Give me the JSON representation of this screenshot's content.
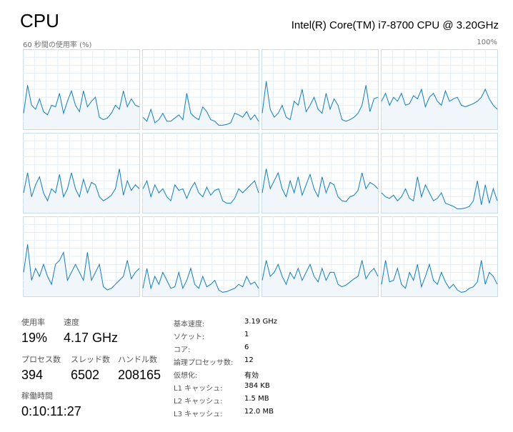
{
  "header": {
    "title": "CPU",
    "cpu_name": "Intel(R) Core(TM) i7-8700 CPU @ 3.20GHz",
    "graph_label": "60 秒間の使用率 (%)",
    "graph_max": "100%"
  },
  "chart_data": [
    {
      "type": "line",
      "ylim": [
        0,
        100
      ],
      "color": "#117dbb",
      "values": [
        20,
        55,
        30,
        25,
        38,
        22,
        18,
        30,
        28,
        45,
        20,
        35,
        48,
        30,
        22,
        48,
        28,
        35,
        40,
        15,
        12,
        14,
        20,
        30,
        25,
        48,
        28,
        38,
        30,
        28
      ]
    },
    {
      "type": "line",
      "ylim": [
        0,
        100
      ],
      "color": "#117dbb",
      "values": [
        15,
        10,
        25,
        8,
        12,
        20,
        10,
        10,
        14,
        18,
        12,
        45,
        20,
        15,
        12,
        28,
        22,
        12,
        10,
        5,
        5,
        6,
        8,
        20,
        18,
        15,
        22,
        12,
        18,
        10
      ]
    },
    {
      "type": "line",
      "ylim": [
        0,
        100
      ],
      "color": "#117dbb",
      "values": [
        20,
        60,
        25,
        15,
        20,
        30,
        15,
        12,
        35,
        30,
        50,
        22,
        30,
        40,
        25,
        20,
        45,
        25,
        38,
        30,
        12,
        10,
        12,
        15,
        20,
        30,
        55,
        22,
        38,
        40
      ]
    },
    {
      "type": "line",
      "ylim": [
        0,
        100
      ],
      "color": "#117dbb",
      "values": [
        35,
        45,
        30,
        40,
        35,
        45,
        30,
        32,
        42,
        38,
        50,
        28,
        40,
        45,
        35,
        30,
        48,
        35,
        38,
        40,
        30,
        28,
        30,
        32,
        35,
        40,
        50,
        38,
        30,
        25
      ]
    },
    {
      "type": "line",
      "ylim": [
        0,
        100
      ],
      "color": "#117dbb",
      "values": [
        25,
        50,
        20,
        35,
        45,
        25,
        15,
        30,
        25,
        48,
        20,
        30,
        50,
        30,
        20,
        42,
        25,
        38,
        35,
        20,
        15,
        18,
        22,
        30,
        55,
        22,
        40,
        28,
        35,
        30
      ]
    },
    {
      "type": "line",
      "ylim": [
        0,
        100
      ],
      "color": "#117dbb",
      "values": [
        30,
        40,
        20,
        35,
        25,
        30,
        20,
        15,
        35,
        28,
        30,
        18,
        30,
        38,
        25,
        20,
        32,
        22,
        28,
        30,
        15,
        12,
        12,
        18,
        30,
        25,
        30,
        35,
        40,
        25
      ]
    },
    {
      "type": "line",
      "ylim": [
        0,
        100
      ],
      "color": "#117dbb",
      "values": [
        25,
        55,
        30,
        40,
        50,
        30,
        20,
        40,
        25,
        45,
        22,
        35,
        48,
        30,
        20,
        45,
        25,
        38,
        35,
        20,
        15,
        14,
        20,
        22,
        28,
        50,
        30,
        38,
        35,
        30
      ]
    },
    {
      "type": "line",
      "ylim": [
        0,
        100
      ],
      "color": "#117dbb",
      "values": [
        25,
        20,
        18,
        22,
        15,
        20,
        30,
        18,
        15,
        45,
        20,
        35,
        25,
        15,
        18,
        25,
        12,
        10,
        8,
        5,
        5,
        6,
        8,
        15,
        40,
        10,
        35,
        12,
        30,
        15
      ]
    },
    {
      "type": "line",
      "ylim": [
        0,
        100
      ],
      "color": "#117dbb",
      "values": [
        30,
        65,
        20,
        35,
        25,
        40,
        25,
        15,
        40,
        45,
        55,
        20,
        30,
        40,
        30,
        20,
        55,
        20,
        30,
        40,
        12,
        8,
        10,
        15,
        20,
        25,
        45,
        22,
        30,
        35
      ]
    },
    {
      "type": "line",
      "ylim": [
        0,
        100
      ],
      "color": "#117dbb",
      "values": [
        10,
        35,
        10,
        25,
        15,
        30,
        20,
        10,
        12,
        30,
        10,
        20,
        35,
        15,
        10,
        25,
        12,
        15,
        20,
        8,
        5,
        6,
        8,
        10,
        15,
        12,
        25,
        15,
        18,
        10
      ]
    },
    {
      "type": "line",
      "ylim": [
        0,
        100
      ],
      "color": "#117dbb",
      "values": [
        20,
        45,
        25,
        30,
        40,
        25,
        15,
        30,
        22,
        35,
        20,
        30,
        40,
        25,
        18,
        35,
        20,
        30,
        30,
        15,
        12,
        14,
        18,
        22,
        25,
        45,
        22,
        30,
        35,
        25
      ]
    },
    {
      "type": "line",
      "ylim": [
        0,
        100
      ],
      "color": "#117dbb",
      "values": [
        15,
        45,
        18,
        20,
        35,
        15,
        10,
        30,
        20,
        40,
        12,
        25,
        40,
        20,
        15,
        30,
        18,
        10,
        15,
        8,
        5,
        6,
        10,
        12,
        18,
        45,
        15,
        30,
        25,
        15
      ]
    }
  ],
  "stats": [
    {
      "label": "使用率",
      "value": "19%"
    },
    {
      "label": "速度",
      "value": "4.17 GHz"
    },
    {
      "label": "プロセス数",
      "value": "394"
    },
    {
      "label": "スレッド数",
      "value": "6502"
    },
    {
      "label": "ハンドル数",
      "value": "208165"
    },
    {
      "label": "稼働時間",
      "value": "0:10:11:27"
    }
  ],
  "details": [
    {
      "label": "基本速度:",
      "value": "3.19 GHz"
    },
    {
      "label": "ソケット:",
      "value": "1"
    },
    {
      "label": "コア:",
      "value": "6"
    },
    {
      "label": "論理プロセッサ数:",
      "value": "12"
    },
    {
      "label": "仮想化:",
      "value": "有効"
    },
    {
      "label": "L1 キャッシュ:",
      "value": "384 KB"
    },
    {
      "label": "L2 キャッシュ:",
      "value": "1.5 MB"
    },
    {
      "label": "L3 キャッシュ:",
      "value": "12.0 MB"
    }
  ]
}
